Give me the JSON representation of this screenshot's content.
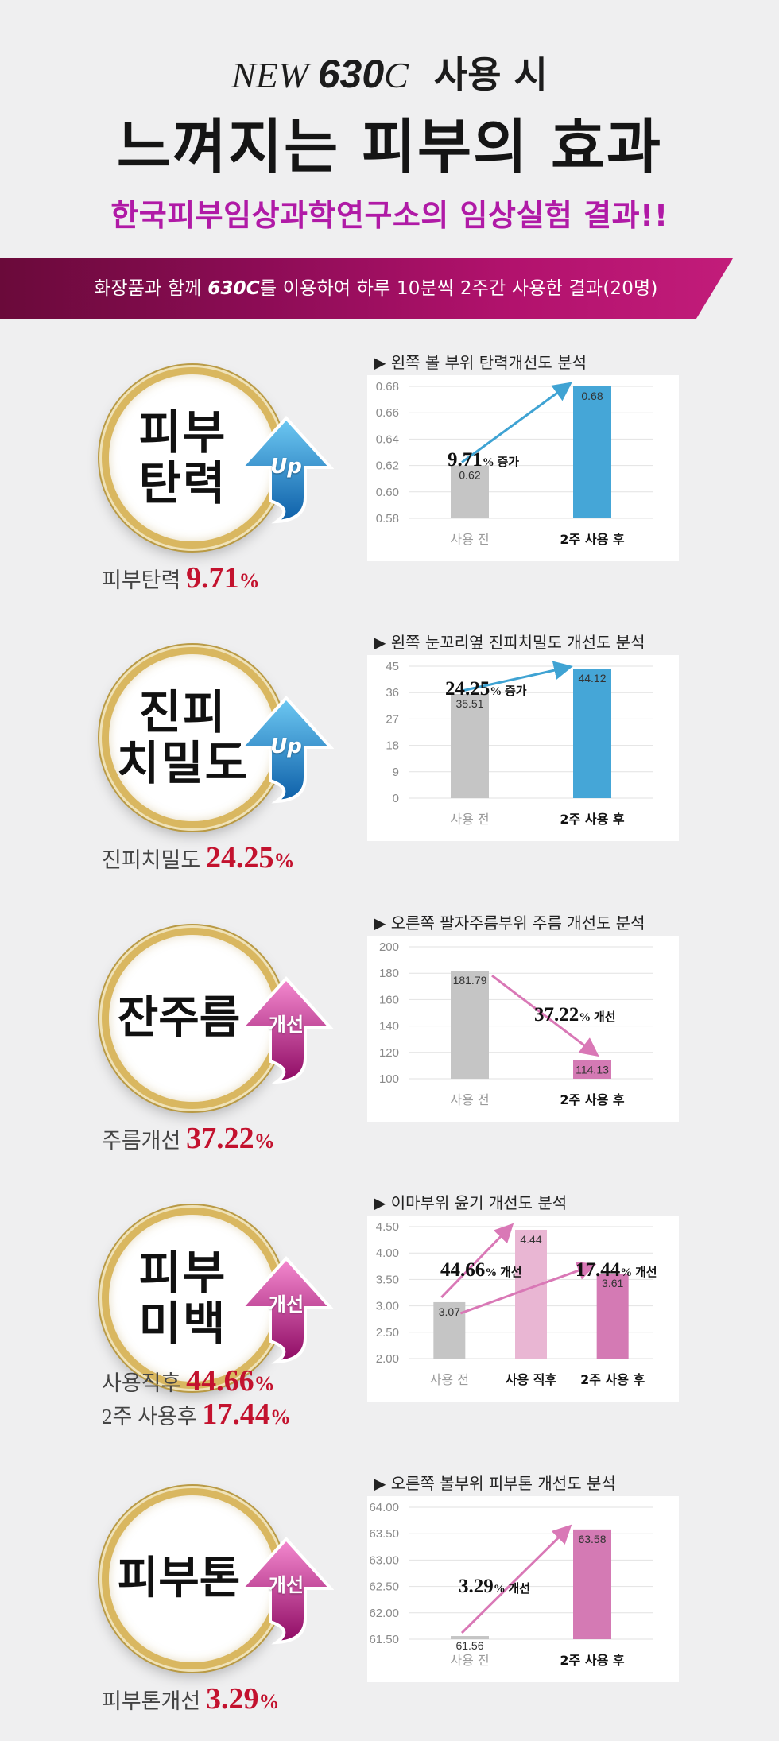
{
  "header": {
    "line1_new": "NEW ",
    "line1_model": "630",
    "line1_c": "C",
    "line1_suffix": "사용 시",
    "title": "느껴지는 피부의 효과",
    "subtitle": "한국피부임상과학연구소의 임상실험 결과!!"
  },
  "banner": {
    "pre": "화장품과 함께 ",
    "model": "630C",
    "post": "를 이용하여 하루 10분씩 2주간 사용한 결과(20명)"
  },
  "colors": {
    "gray_bar": "#c5c5c5",
    "blue_bar": "#45a6d7",
    "pink_bar_light": "#e9b6d3",
    "pink_bar": "#d47ab4",
    "blue_arrow": "#3fa3d3",
    "pink_arrow": "#d978b6",
    "accent_red": "#c3122e",
    "subtitle_purple": "#b01aa6"
  },
  "sections": [
    {
      "badge_lines": [
        "피부",
        "탄력"
      ],
      "badge_icon": "up-arrow-icon",
      "badge_label": "Up",
      "caption_label": "피부탄력 ",
      "caption_value": "9.71",
      "caption_unit": "%",
      "chart_title": "▶ 왼쪽 볼 부위 탄력개선도 분석",
      "ann1_value": "9.71",
      "ann1_unit": "% 증가"
    },
    {
      "badge_lines": [
        "진피",
        "치밀도"
      ],
      "badge_icon": "up-arrow-icon",
      "badge_label": "Up",
      "caption_label": "진피치밀도 ",
      "caption_value": "24.25",
      "caption_unit": "%",
      "chart_title": "▶ 왼쪽 눈꼬리옆 진피치밀도 개선도 분석",
      "ann1_value": "24.25",
      "ann1_unit": "% 증가"
    },
    {
      "badge_lines": [
        "잔주름"
      ],
      "badge_icon": "improve-arrow-icon",
      "badge_label": "개선",
      "caption_label": "주름개선 ",
      "caption_value": "37.22",
      "caption_unit": "%",
      "chart_title": "▶ 오른쪽 팔자주름부위 주름 개선도 분석",
      "ann1_value": "37.22",
      "ann1_unit": "% 개선"
    },
    {
      "badge_lines": [
        "피부",
        "미백"
      ],
      "badge_icon": "improve-arrow-icon",
      "badge_label": "개선",
      "caption_label": "사용직후 ",
      "caption_value": "44.66",
      "caption_unit": "%",
      "caption2_label": "2주 사용후 ",
      "caption2_value": "17.44",
      "caption2_unit": "%",
      "chart_title": "▶ 이마부위 윤기 개선도 분석",
      "ann1_value": "44.66",
      "ann1_unit": "% 개선",
      "ann2_value": "17.44",
      "ann2_unit": "% 개선"
    },
    {
      "badge_lines": [
        "피부톤"
      ],
      "badge_icon": "improve-arrow-icon",
      "badge_label": "개선",
      "caption_label": "피부톤개선 ",
      "caption_value": "3.29",
      "caption_unit": "%",
      "chart_title": "▶ 오른쪽 볼부위 피부톤 개선도 분석",
      "ann1_value": "3.29",
      "ann1_unit": "% 개선"
    }
  ],
  "chart_data": [
    {
      "type": "bar",
      "categories": [
        "사용 전",
        "2주 사용 후"
      ],
      "values": [
        0.62,
        0.68
      ],
      "value_labels": [
        "0.62",
        "0.68"
      ],
      "ylim": [
        0.58,
        0.68
      ],
      "yticks": [
        "0.58",
        "0.60",
        "0.62",
        "0.64",
        "0.66",
        "0.68"
      ],
      "trend": "up"
    },
    {
      "type": "bar",
      "categories": [
        "사용 전",
        "2주 사용 후"
      ],
      "values": [
        35.51,
        44.12
      ],
      "value_labels": [
        "35.51",
        "44.12"
      ],
      "ylim": [
        0,
        45
      ],
      "yticks": [
        "0",
        "9",
        "18",
        "27",
        "36",
        "45"
      ],
      "trend": "up"
    },
    {
      "type": "bar",
      "categories": [
        "사용 전",
        "2주 사용 후"
      ],
      "values": [
        181.79,
        114.13
      ],
      "value_labels": [
        "181.79",
        "114.13"
      ],
      "ylim": [
        100,
        200
      ],
      "yticks": [
        "100",
        "120",
        "140",
        "160",
        "180",
        "200"
      ],
      "trend": "down"
    },
    {
      "type": "bar",
      "categories": [
        "사용 전",
        "사용 직후",
        "2주 사용 후"
      ],
      "values": [
        3.07,
        4.44,
        3.61
      ],
      "value_labels": [
        "3.07",
        "4.44",
        "3.61"
      ],
      "ylim": [
        2.0,
        4.5
      ],
      "yticks": [
        "2.00",
        "2.50",
        "3.00",
        "3.50",
        "4.00",
        "4.50"
      ],
      "trend": "up"
    },
    {
      "type": "bar",
      "categories": [
        "사용 전",
        "2주 사용 후"
      ],
      "values": [
        61.56,
        63.58
      ],
      "value_labels": [
        "61.56",
        "63.58"
      ],
      "ylim": [
        61.5,
        64.0
      ],
      "yticks": [
        "61.50",
        "62.00",
        "62.50",
        "63.00",
        "63.50",
        "64.00"
      ],
      "trend": "up"
    }
  ]
}
